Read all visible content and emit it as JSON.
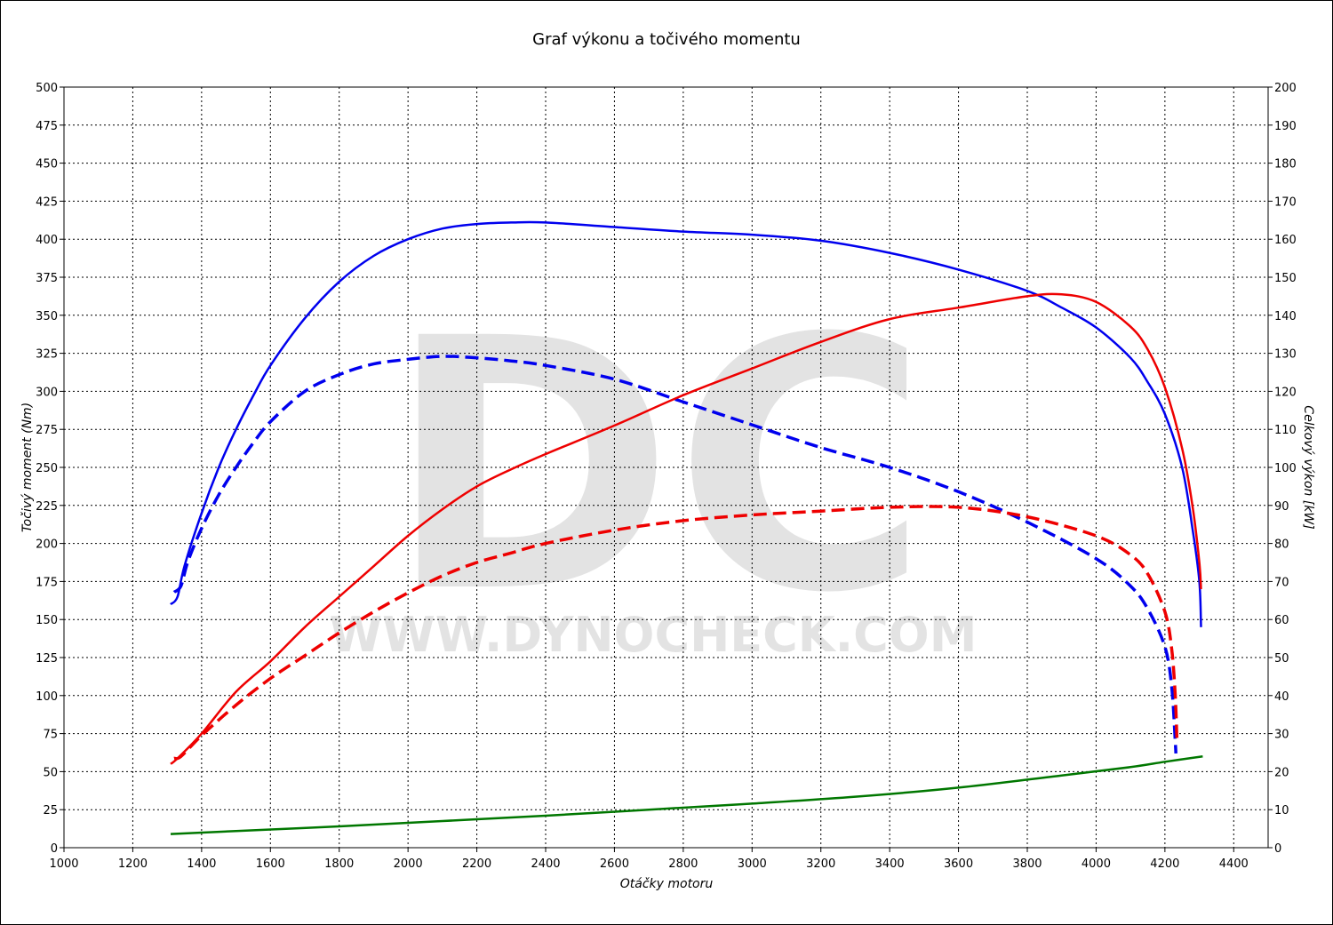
{
  "chart_data": {
    "type": "line",
    "title": "Graf výkonu a točivého momentu",
    "xlabel": "Otáčky motoru",
    "ylabel_left": "Točivý moment (Nm)",
    "ylabel_right": "Celkový výkon [kW]",
    "xlim": [
      1000,
      4500
    ],
    "ylim_left": [
      0,
      500
    ],
    "ylim_right": [
      0,
      200
    ],
    "x_ticks": [
      1000,
      1200,
      1400,
      1600,
      1800,
      2000,
      2200,
      2400,
      2600,
      2800,
      3000,
      3200,
      3400,
      3600,
      3800,
      4000,
      4200,
      4400
    ],
    "y_left_ticks": [
      0,
      25,
      50,
      75,
      100,
      125,
      150,
      175,
      200,
      225,
      250,
      275,
      300,
      325,
      350,
      375,
      400,
      425,
      450,
      475,
      500
    ],
    "y_right_ticks": [
      0,
      10,
      20,
      30,
      40,
      50,
      60,
      70,
      80,
      90,
      100,
      110,
      120,
      130,
      140,
      150,
      160,
      170,
      180,
      190,
      200
    ],
    "grid": true,
    "legend": "none",
    "watermark": {
      "letters": "DC",
      "url": "WWW.DYNOCHECK.COM"
    },
    "series": [
      {
        "axis": "left",
        "color": "#0000ee",
        "dash": false,
        "points": [
          [
            1310,
            160
          ],
          [
            1330,
            165
          ],
          [
            1350,
            185
          ],
          [
            1400,
            220
          ],
          [
            1450,
            250
          ],
          [
            1500,
            275
          ],
          [
            1550,
            297
          ],
          [
            1600,
            317
          ],
          [
            1700,
            348
          ],
          [
            1800,
            372
          ],
          [
            1900,
            389
          ],
          [
            2000,
            400
          ],
          [
            2100,
            407
          ],
          [
            2200,
            410
          ],
          [
            2300,
            411
          ],
          [
            2400,
            411
          ],
          [
            2600,
            408
          ],
          [
            2800,
            405
          ],
          [
            3000,
            403
          ],
          [
            3200,
            399
          ],
          [
            3400,
            391
          ],
          [
            3600,
            380
          ],
          [
            3800,
            366
          ],
          [
            3900,
            355
          ],
          [
            4000,
            342
          ],
          [
            4100,
            322
          ],
          [
            4150,
            306
          ],
          [
            4200,
            285
          ],
          [
            4250,
            250
          ],
          [
            4280,
            210
          ],
          [
            4300,
            175
          ],
          [
            4305,
            145
          ]
        ]
      },
      {
        "axis": "left",
        "color": "#0000ee",
        "dash": true,
        "points": [
          [
            1320,
            168
          ],
          [
            1340,
            172
          ],
          [
            1360,
            188
          ],
          [
            1400,
            210
          ],
          [
            1450,
            232
          ],
          [
            1500,
            250
          ],
          [
            1550,
            266
          ],
          [
            1600,
            280
          ],
          [
            1700,
            300
          ],
          [
            1800,
            311
          ],
          [
            1900,
            318
          ],
          [
            2000,
            321
          ],
          [
            2100,
            323
          ],
          [
            2200,
            322
          ],
          [
            2300,
            320
          ],
          [
            2400,
            317
          ],
          [
            2600,
            308
          ],
          [
            2800,
            293
          ],
          [
            3000,
            278
          ],
          [
            3200,
            263
          ],
          [
            3400,
            250
          ],
          [
            3600,
            234
          ],
          [
            3800,
            214
          ],
          [
            4000,
            190
          ],
          [
            4100,
            172
          ],
          [
            4150,
            157
          ],
          [
            4200,
            132
          ],
          [
            4220,
            105
          ],
          [
            4230,
            70
          ],
          [
            4232,
            62
          ]
        ]
      },
      {
        "axis": "right",
        "color": "#ee0000",
        "dash": false,
        "points": [
          [
            1310,
            22
          ],
          [
            1330,
            23.5
          ],
          [
            1400,
            30
          ],
          [
            1500,
            41
          ],
          [
            1600,
            49
          ],
          [
            1700,
            58
          ],
          [
            1800,
            66
          ],
          [
            1900,
            74
          ],
          [
            2000,
            82
          ],
          [
            2100,
            89
          ],
          [
            2200,
            95
          ],
          [
            2300,
            99.5
          ],
          [
            2400,
            103.5
          ],
          [
            2600,
            111
          ],
          [
            2800,
            119
          ],
          [
            3000,
            126
          ],
          [
            3200,
            133
          ],
          [
            3400,
            139
          ],
          [
            3600,
            142
          ],
          [
            3800,
            145
          ],
          [
            3900,
            145.5
          ],
          [
            4000,
            143.5
          ],
          [
            4100,
            137
          ],
          [
            4150,
            131
          ],
          [
            4200,
            121
          ],
          [
            4250,
            105
          ],
          [
            4280,
            90
          ],
          [
            4300,
            75
          ],
          [
            4305,
            68
          ]
        ]
      },
      {
        "axis": "right",
        "color": "#ee0000",
        "dash": true,
        "points": [
          [
            1320,
            23.5
          ],
          [
            1340,
            24
          ],
          [
            1400,
            29.5
          ],
          [
            1500,
            37.5
          ],
          [
            1600,
            44.5
          ],
          [
            1700,
            50.5
          ],
          [
            1800,
            56.5
          ],
          [
            1900,
            62
          ],
          [
            2000,
            67
          ],
          [
            2100,
            71.5
          ],
          [
            2200,
            75
          ],
          [
            2300,
            77.5
          ],
          [
            2400,
            80
          ],
          [
            2600,
            83.5
          ],
          [
            2800,
            86
          ],
          [
            3000,
            87.5
          ],
          [
            3200,
            88.5
          ],
          [
            3400,
            89.5
          ],
          [
            3600,
            89.5
          ],
          [
            3800,
            87
          ],
          [
            4000,
            82
          ],
          [
            4100,
            77
          ],
          [
            4150,
            72
          ],
          [
            4200,
            62
          ],
          [
            4220,
            52
          ],
          [
            4230,
            40
          ],
          [
            4235,
            28
          ]
        ]
      },
      {
        "axis": "left",
        "color": "#007700",
        "dash": false,
        "points": [
          [
            1310,
            9
          ],
          [
            1500,
            11
          ],
          [
            1800,
            14
          ],
          [
            2100,
            17.5
          ],
          [
            2400,
            21
          ],
          [
            2700,
            25
          ],
          [
            3000,
            29
          ],
          [
            3300,
            33.5
          ],
          [
            3600,
            39.5
          ],
          [
            3900,
            47.5
          ],
          [
            4100,
            53
          ],
          [
            4200,
            56.5
          ],
          [
            4310,
            60
          ]
        ]
      }
    ]
  }
}
